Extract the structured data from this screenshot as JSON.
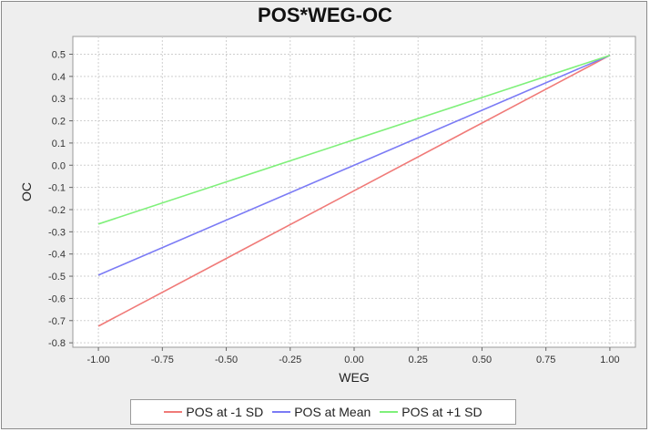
{
  "chart_data": {
    "type": "line",
    "title": "POS*WEG-OC",
    "xlabel": "WEG",
    "ylabel": "OC",
    "xlim": [
      -1.1,
      1.1
    ],
    "ylim": [
      -0.82,
      0.58
    ],
    "x_ticks": [
      -1.0,
      -0.75,
      -0.5,
      -0.25,
      0.0,
      0.25,
      0.5,
      0.75,
      1.0
    ],
    "x_tick_labels": [
      "-1.00",
      "-0.75",
      "-0.50",
      "-0.25",
      "0.00",
      "0.25",
      "0.50",
      "0.75",
      "1.00"
    ],
    "y_ticks": [
      0.5,
      0.4,
      0.3,
      0.2,
      0.1,
      0.0,
      -0.1,
      -0.2,
      -0.3,
      -0.4,
      -0.5,
      -0.6,
      -0.7,
      -0.8
    ],
    "y_tick_labels": [
      "0.5",
      "0.4",
      "0.3",
      "0.2",
      "0.1",
      "0.0",
      "-0.1",
      "-0.2",
      "-0.3",
      "-0.4",
      "-0.5",
      "-0.6",
      "-0.7",
      "-0.8"
    ],
    "grid": true,
    "legend_position": "bottom",
    "series": [
      {
        "name": "POS at -1 SD",
        "color": "#f07a78",
        "x": [
          -1.0,
          1.0
        ],
        "y": [
          -0.725,
          0.495
        ]
      },
      {
        "name": "POS at Mean",
        "color": "#7b7bf5",
        "x": [
          -1.0,
          1.0
        ],
        "y": [
          -0.495,
          0.495
        ]
      },
      {
        "name": "POS at +1 SD",
        "color": "#7ff07a",
        "x": [
          -1.0,
          1.0
        ],
        "y": [
          -0.265,
          0.495
        ]
      }
    ]
  }
}
